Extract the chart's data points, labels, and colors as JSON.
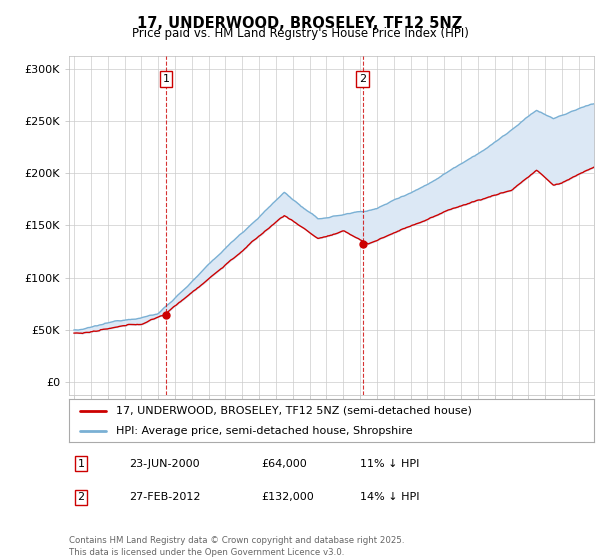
{
  "title": "17, UNDERWOOD, BROSELEY, TF12 5NZ",
  "subtitle": "Price paid vs. HM Land Registry's House Price Index (HPI)",
  "background_color": "#ffffff",
  "plot_bg_color": "#ffffff",
  "grid_color": "#cccccc",
  "line1_color": "#cc0000",
  "line2_color": "#7ab0d4",
  "fill_color": "#dce8f5",
  "purchase1_x": 2000.47,
  "purchase1_y": 64000,
  "purchase2_x": 2012.15,
  "purchase2_y": 132000,
  "yticks": [
    0,
    50000,
    100000,
    150000,
    200000,
    250000,
    300000
  ],
  "ytick_labels": [
    "£0",
    "£50K",
    "£100K",
    "£150K",
    "£200K",
    "£250K",
    "£300K"
  ],
  "legend_label1": "17, UNDERWOOD, BROSELEY, TF12 5NZ (semi-detached house)",
  "legend_label2": "HPI: Average price, semi-detached house, Shropshire",
  "table_row1": [
    "1",
    "23-JUN-2000",
    "£64,000",
    "11% ↓ HPI"
  ],
  "table_row2": [
    "2",
    "27-FEB-2012",
    "£132,000",
    "14% ↓ HPI"
  ],
  "footer": "Contains HM Land Registry data © Crown copyright and database right 2025.\nThis data is licensed under the Open Government Licence v3.0.",
  "xlim_left": 1994.7,
  "xlim_right": 2025.9,
  "ylim_bottom": -12000,
  "ylim_top": 312000
}
